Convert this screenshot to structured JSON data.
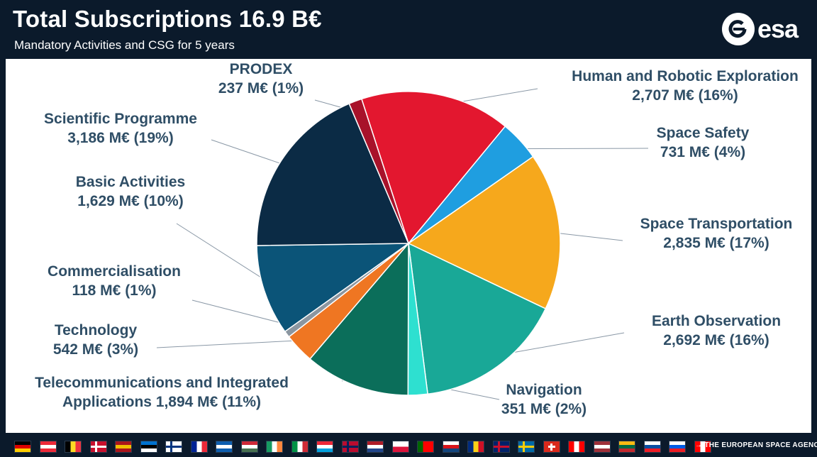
{
  "header": {
    "title": "Total Subscriptions 16.9 B€",
    "subtitle": "Mandatory Activities and CSG for 5 years"
  },
  "logo": {
    "text": "esa",
    "icon": "esa-logo-icon"
  },
  "chart_data": {
    "type": "pie",
    "title": "Total Subscriptions 16.9 B€",
    "subtitle": "Mandatory Activities and CSG for 5 years",
    "unit": "M€",
    "start_angle_deg": -18,
    "direction": "clockwise",
    "slices": [
      {
        "name": "Human and Robotic Exploration",
        "value": 2707,
        "value_label": "2,707 M€",
        "percent_label": "(16%)",
        "color": "#e3172f"
      },
      {
        "name": "Space Safety",
        "value": 731,
        "value_label": "731 M€",
        "percent_label": "(4%)",
        "color": "#1f9ee0"
      },
      {
        "name": "Space Transportation",
        "value": 2835,
        "value_label": "2,835 M€",
        "percent_label": "(17%)",
        "color": "#f6a81c"
      },
      {
        "name": "Earth Observation",
        "value": 2692,
        "value_label": "2,692 M€",
        "percent_label": "(16%)",
        "color": "#19a897"
      },
      {
        "name": "Navigation",
        "value": 351,
        "value_label": "351 M€",
        "percent_label": "(2%)",
        "color": "#2ee0d0"
      },
      {
        "name": "Telecommunications and Integrated Applications",
        "value": 1894,
        "value_label": "1,894 M€",
        "percent_label": "(11%)",
        "color": "#0b6e5a"
      },
      {
        "name": "Technology",
        "value": 542,
        "value_label": "542 M€",
        "percent_label": "(3%)",
        "color": "#ef7622"
      },
      {
        "name": "Commercialisation",
        "value": 118,
        "value_label": "118 M€",
        "percent_label": "(1%)",
        "color": "#8b96a0"
      },
      {
        "name": "Basic Activities",
        "value": 1629,
        "value_label": "1,629 M€",
        "percent_label": "(10%)",
        "color": "#0b5478"
      },
      {
        "name": "Scientific Programme",
        "value": 3186,
        "value_label": "3,186 M€",
        "percent_label": "(19%)",
        "color": "#0b2b45"
      },
      {
        "name": "PRODEX",
        "value": 237,
        "value_label": "237 M€",
        "percent_label": "(1%)",
        "color": "#a8122a"
      }
    ],
    "labels": [
      {
        "lines": [
          "Human and Robotic Exploration",
          "2,707 M€  (16%)"
        ]
      },
      {
        "lines": [
          "Space Safety",
          "731 M€  (4%)"
        ]
      },
      {
        "lines": [
          "Space Transportation",
          "2,835 M€  (17%)"
        ]
      },
      {
        "lines": [
          "Earth Observation",
          "2,692 M€  (16%)"
        ]
      },
      {
        "lines": [
          "Navigation",
          "351 M€  (2%)"
        ]
      },
      {
        "lines": [
          "Telecommunications and Integrated",
          "Applications 1,894 M€  (11%)"
        ]
      },
      {
        "lines": [
          "Technology",
          "542 M€  (3%)"
        ]
      },
      {
        "lines": [
          "Commercialisation",
          "118 M€  (1%)"
        ]
      },
      {
        "lines": [
          "Basic Activities",
          "1,629 M€  (10%)"
        ]
      },
      {
        "lines": [
          "Scientific Programme",
          "3,186 M€  (19%)"
        ]
      },
      {
        "lines": [
          "PRODEX",
          "237 M€  (1%)"
        ]
      }
    ],
    "label_color": "#2f4e66"
  },
  "footer": {
    "tagline": "→ THE EUROPEAN SPACE AGENCY",
    "flags": [
      {
        "name": "germany-flag",
        "colors": [
          "#000000",
          "#dd0000",
          "#ffce00"
        ],
        "dir": "h"
      },
      {
        "name": "austria-flag",
        "colors": [
          "#ed2939",
          "#ffffff",
          "#ed2939"
        ],
        "dir": "h"
      },
      {
        "name": "belgium-flag",
        "colors": [
          "#000000",
          "#fdda24",
          "#ef3340"
        ],
        "dir": "v"
      },
      {
        "name": "denmark-flag",
        "colors": [
          "#c8102e",
          "#ffffff"
        ],
        "dir": "cross"
      },
      {
        "name": "spain-flag",
        "colors": [
          "#aa151b",
          "#f1bf00",
          "#aa151b"
        ],
        "dir": "h"
      },
      {
        "name": "estonia-flag",
        "colors": [
          "#0072ce",
          "#000000",
          "#ffffff"
        ],
        "dir": "h"
      },
      {
        "name": "finland-flag",
        "colors": [
          "#ffffff",
          "#003580"
        ],
        "dir": "cross"
      },
      {
        "name": "france-flag",
        "colors": [
          "#002395",
          "#ffffff",
          "#ed2939"
        ],
        "dir": "v"
      },
      {
        "name": "greece-flag",
        "colors": [
          "#0d5eaf",
          "#ffffff",
          "#0d5eaf"
        ],
        "dir": "h"
      },
      {
        "name": "hungary-flag",
        "colors": [
          "#ce2939",
          "#ffffff",
          "#477050"
        ],
        "dir": "h"
      },
      {
        "name": "ireland-flag",
        "colors": [
          "#169b62",
          "#ffffff",
          "#ff883e"
        ],
        "dir": "v"
      },
      {
        "name": "italy-flag",
        "colors": [
          "#009246",
          "#ffffff",
          "#ce2b37"
        ],
        "dir": "v"
      },
      {
        "name": "luxembourg-flag",
        "colors": [
          "#ed2939",
          "#ffffff",
          "#00a1de"
        ],
        "dir": "h"
      },
      {
        "name": "norway-flag",
        "colors": [
          "#ba0c2f",
          "#00205b"
        ],
        "dir": "cross"
      },
      {
        "name": "netherlands-flag",
        "colors": [
          "#ae1c28",
          "#ffffff",
          "#21468b"
        ],
        "dir": "h"
      },
      {
        "name": "poland-flag",
        "colors": [
          "#ffffff",
          "#dc143c"
        ],
        "dir": "h"
      },
      {
        "name": "portugal-flag",
        "colors": [
          "#006600",
          "#ff0000",
          "#ff0000"
        ],
        "dir": "v"
      },
      {
        "name": "czech-republic-flag",
        "colors": [
          "#ffffff",
          "#d7141a",
          "#11457e"
        ],
        "dir": "h"
      },
      {
        "name": "romania-flag",
        "colors": [
          "#002b7f",
          "#fcd116",
          "#ce1126"
        ],
        "dir": "v"
      },
      {
        "name": "united-kingdom-flag",
        "colors": [
          "#012169",
          "#c8102e"
        ],
        "dir": "cross"
      },
      {
        "name": "sweden-flag",
        "colors": [
          "#006aa7",
          "#fecc00"
        ],
        "dir": "cross"
      },
      {
        "name": "switzerland-flag",
        "colors": [
          "#da291c",
          "#ffffff"
        ],
        "dir": "plus"
      },
      {
        "name": "canada-flag",
        "colors": [
          "#ff0000",
          "#ffffff",
          "#ff0000"
        ],
        "dir": "v"
      },
      {
        "name": "latvia-flag",
        "colors": [
          "#9e3039",
          "#ffffff",
          "#9e3039"
        ],
        "dir": "h"
      },
      {
        "name": "lithuania-flag",
        "colors": [
          "#fdb913",
          "#006a44",
          "#c1272d"
        ],
        "dir": "h"
      },
      {
        "name": "slovakia-flag",
        "colors": [
          "#ffffff",
          "#0b4ea2",
          "#ee1c25"
        ],
        "dir": "h"
      },
      {
        "name": "slovenia-flag",
        "colors": [
          "#ffffff",
          "#005ce5",
          "#ed1c24"
        ],
        "dir": "h"
      },
      {
        "name": "canada-flag-2",
        "colors": [
          "#ff0000",
          "#ffffff",
          "#ff0000"
        ],
        "dir": "v"
      }
    ]
  }
}
